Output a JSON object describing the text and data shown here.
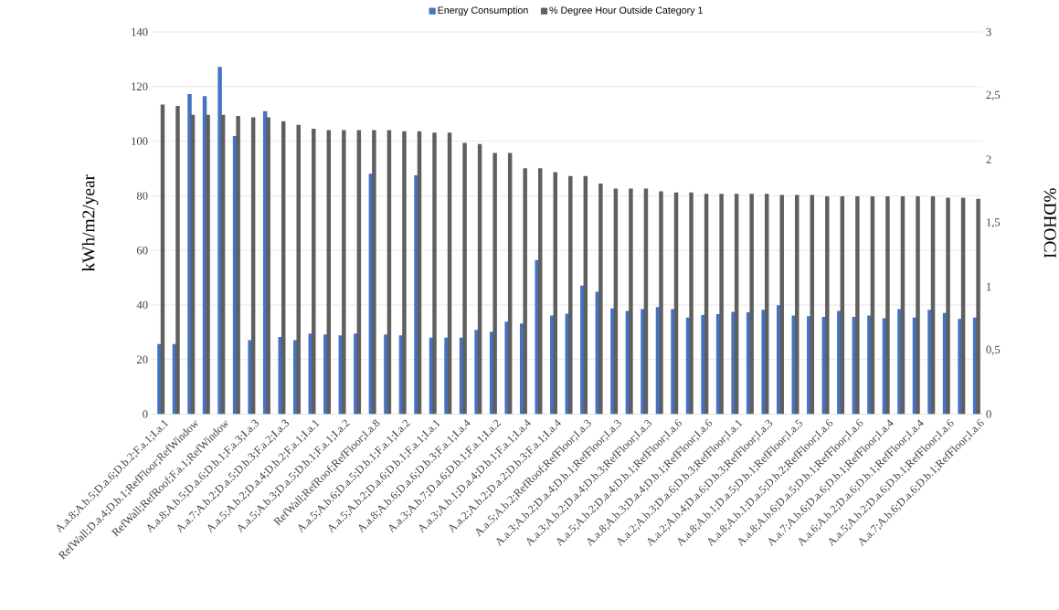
{
  "chart_data": {
    "type": "bar",
    "categories": [
      "A.a.8;A.b.5;D.a.6;D.b.2;F.a.1;I.a.1",
      null,
      "RefWall;D.a.4;D.b.1;RefFloor;RefWindow",
      null,
      "RefWall;RefRoof;F.a.1;RefWindow",
      null,
      "A.a.8;A.b.5;D.a.6;D.b.1;F.a.3;I.a.3",
      null,
      "A.a.7;A.b.2;D.a.5;D.b.3;F.a.2;I.a.3",
      null,
      "A.a.5;A.b.2;D.a.4;D.b.2;F.a.1;I.a.1",
      null,
      "A.a.5;A.b.3;D.a.5;D.b.1;F.a.1;I.a.2",
      null,
      "RefWall;RefRoof;RefFloor;I.a.8",
      null,
      "A.a.5;A.b.6;D.a.5;D.b.1;F.a.1;I.a.2",
      null,
      "A.a.5;A.b.2;D.a.6;D.b.1;F.a.1;I.a.1",
      null,
      "A.a.8;A.b.6;D.a.6;D.b.3;F.a.1;I.a.4",
      null,
      "A.a.3;A.b.7;D.a.6;D.b.1;F.a.1;I.a.2",
      null,
      "A.a.3;A.b.1;D.a.4;D.b.1;F.a.1;I.a.4",
      null,
      "A.a.2;A.b.2;D.a.2;D.b.3;F.a.1;I.a.4",
      null,
      "A.a.5;A.b.2;RefRoof;RefFloor;I.a.3",
      null,
      "A.a.3;A.b.2;D.a.4;D.b.1;RefFloor;I.a.3",
      null,
      "A.a.3;A.b.2;D.a.4;D.b.3;RefFloor;I.a.3",
      null,
      "A.a.5;A.b.2;D.a.4;D.b.1;RefFloor;I.a.6",
      null,
      "A.a.8;A.b.3;D.a.4;D.b.1;RefFloor;I.a.6",
      null,
      "A.a.2;A.b.3;D.a.6;D.b.3;RefFloor;I.a.1",
      null,
      "A.a.2;A.b.4;D.a.6;D.b.3;RefFloor;I.a.3",
      null,
      "A.a.8;A.b.1;D.a.5;D.b.1;RefFloor;I.a.5",
      null,
      "A.a.8;A.b.1;D.a.5;D.b.2;RefFloor;I.a.6",
      null,
      "A.a.8;A.b.6;D.a.5;D.b.1;RefFloor;I.a.6",
      null,
      "A.a.7;A.b.6;D.a.6;D.b.1;RefFloor;I.a.4",
      null,
      "A.a.6;A.b.2;D.a.6;D.b.1;RefFloor;I.a.4",
      null,
      "A.a.5;A.b.2;D.a.6;D.b.1;RefFloor;I.a.6",
      null,
      "A.a.7;A.b.6;D.a.6;D.b.1;RefFloor;I.a.6"
    ],
    "series": [
      {
        "name": "Energy Consumption",
        "color": "#4472c4",
        "values": [
          25.7,
          25.7,
          117.3,
          116.5,
          127.2,
          101.9,
          27.1,
          111.0,
          28.3,
          27.1,
          29.5,
          29.2,
          28.9,
          29.5,
          88.1,
          29.2,
          28.9,
          87.5,
          28.0,
          28.0,
          28.0,
          30.9,
          30.2,
          33.9,
          33.2,
          56.5,
          36.1,
          36.8,
          47.1,
          44.8,
          38.7,
          37.8,
          38.5,
          39.2,
          38.5,
          35.4,
          36.3,
          36.6,
          37.5,
          37.3,
          38.2,
          39.9,
          36.1,
          35.9,
          35.6,
          37.8,
          35.6,
          36.1,
          35.1,
          38.5,
          35.4,
          38.2,
          37.1,
          34.9,
          35.4
        ]
      },
      {
        "name": "% Degree Hour Outside Category 1",
        "color": "#5f5f5f",
        "axis": "y2",
        "values": [
          2.43,
          2.42,
          2.35,
          2.35,
          2.35,
          2.34,
          2.33,
          2.33,
          2.3,
          2.27,
          2.24,
          2.23,
          2.23,
          2.23,
          2.23,
          2.23,
          2.22,
          2.22,
          2.21,
          2.21,
          2.13,
          2.12,
          2.05,
          2.05,
          1.93,
          1.93,
          1.9,
          1.87,
          1.87,
          1.81,
          1.77,
          1.77,
          1.77,
          1.75,
          1.74,
          1.74,
          1.73,
          1.73,
          1.73,
          1.73,
          1.73,
          1.72,
          1.72,
          1.72,
          1.71,
          1.71,
          1.71,
          1.71,
          1.71,
          1.71,
          1.71,
          1.71,
          1.7,
          1.7,
          1.69
        ]
      }
    ],
    "ylabel": "kWh/m2/year",
    "y2label": "%DHOCI",
    "ylim": [
      0,
      140
    ],
    "yticks": [
      0,
      20,
      40,
      60,
      80,
      100,
      120,
      140
    ],
    "y2lim": [
      0,
      3
    ],
    "y2ticks": [
      0,
      {
        "value": 0.5,
        "label": "0,5"
      },
      1,
      {
        "value": 1.5,
        "label": "1,5"
      },
      2,
      {
        "value": 2.5,
        "label": "2,5"
      },
      3
    ],
    "grid": "y",
    "legend": "top"
  }
}
